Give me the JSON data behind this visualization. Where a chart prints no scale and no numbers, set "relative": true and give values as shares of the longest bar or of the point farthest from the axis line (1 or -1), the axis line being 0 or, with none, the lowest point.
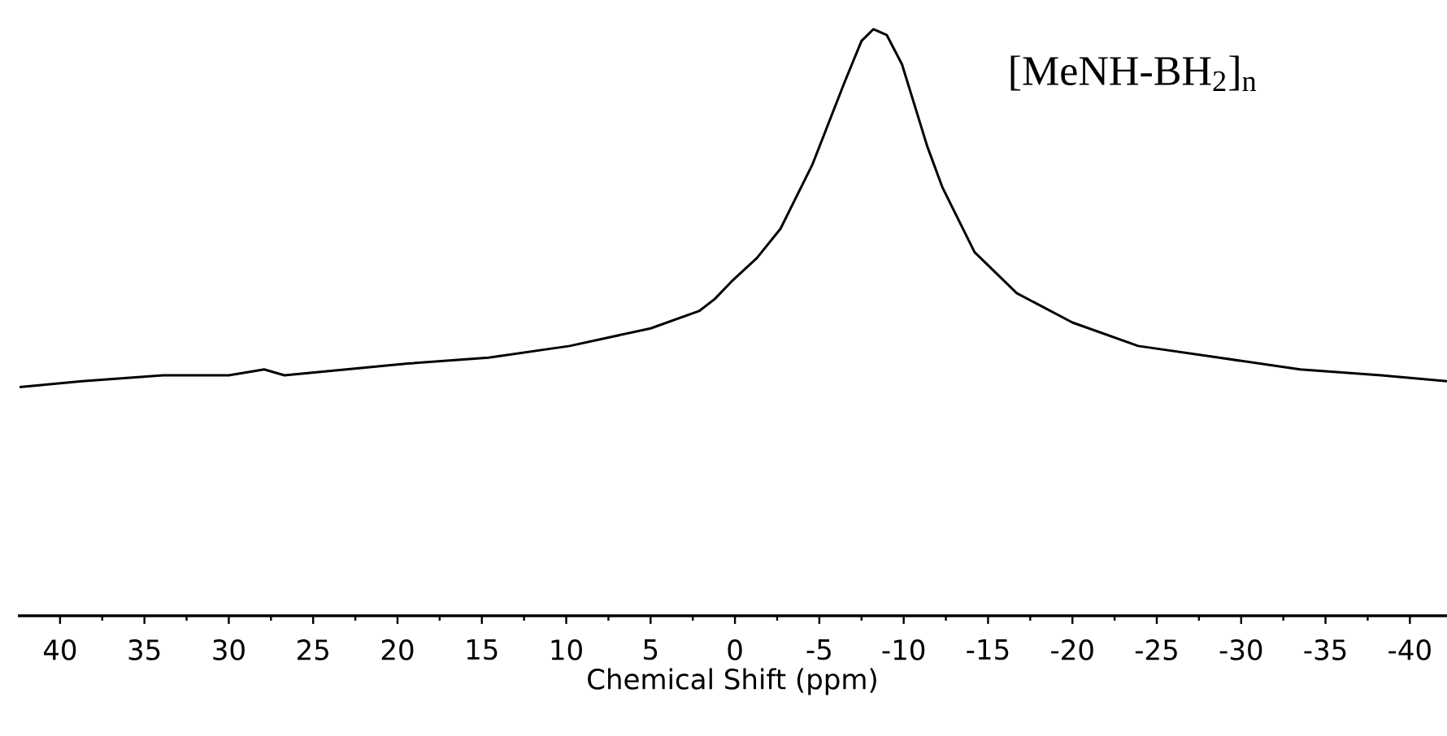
{
  "chart_data": {
    "type": "line",
    "relative": true,
    "color": "#000000",
    "xlabel": "Chemical Shift (ppm)",
    "xlim": [
      42.5,
      -42.2
    ],
    "xticks": [
      40,
      35,
      30,
      25,
      20,
      15,
      10,
      5,
      0,
      -5,
      -10,
      -15,
      -20,
      -25,
      -30,
      -35,
      -40
    ],
    "annotations": [
      "[MeNH-BH$_{2}$]$_{n}$"
    ],
    "x": [
      42.4,
      38.7,
      33.9,
      30.0,
      27.9,
      26.7,
      19.4,
      14.6,
      9.8,
      5.0,
      2.1,
      1.2,
      0.2,
      -1.3,
      -2.7,
      -4.6,
      -6.5,
      -7.5,
      -8.2,
      -9.0,
      -9.9,
      -11.4,
      -12.3,
      -14.2,
      -16.7,
      -20.0,
      -23.9,
      -28.7,
      -33.5,
      -38.3,
      -42.2
    ],
    "values": [
      0.39,
      0.4,
      0.41,
      0.41,
      0.42,
      0.41,
      0.43,
      0.44,
      0.46,
      0.49,
      0.52,
      0.54,
      0.57,
      0.61,
      0.66,
      0.77,
      0.91,
      0.98,
      1.0,
      0.99,
      0.94,
      0.8,
      0.73,
      0.62,
      0.55,
      0.5,
      0.46,
      0.44,
      0.42,
      0.41,
      0.4
    ]
  }
}
